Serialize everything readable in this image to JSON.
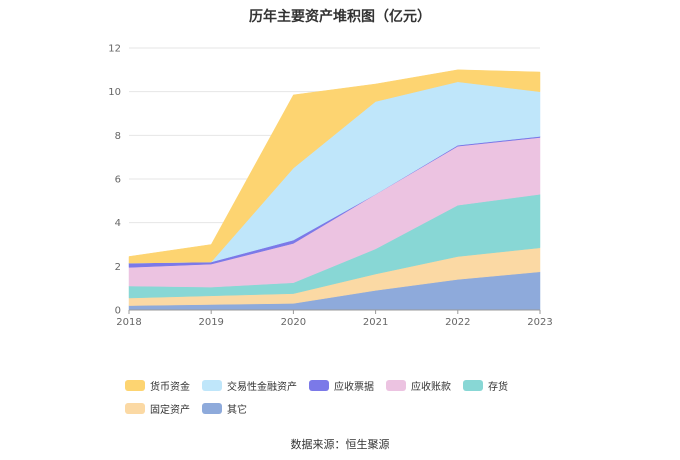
{
  "chart_data": {
    "type": "area",
    "stacked": true,
    "title": "历年主要资产堆积图（亿元）",
    "xlabel": "",
    "ylabel": "",
    "x": [
      "2018",
      "2019",
      "2020",
      "2021",
      "2022",
      "2023"
    ],
    "ylim": [
      0,
      12
    ],
    "yticks": [
      0,
      2,
      4,
      6,
      8,
      10,
      12
    ],
    "grid": true,
    "legend_position": "bottom",
    "series": [
      {
        "name": "其它",
        "color": "#8eaadb",
        "values": [
          0.2,
          0.25,
          0.3,
          0.9,
          1.4,
          1.75
        ]
      },
      {
        "name": "固定资产",
        "color": "#fbd9a4",
        "values": [
          0.35,
          0.4,
          0.45,
          0.75,
          1.05,
          1.1
        ]
      },
      {
        "name": "存货",
        "color": "#88d7d5",
        "values": [
          0.55,
          0.4,
          0.5,
          1.15,
          2.35,
          2.45
        ]
      },
      {
        "name": "应收账款",
        "color": "#ecc3e1",
        "values": [
          0.85,
          1.05,
          1.8,
          2.5,
          2.7,
          2.6
        ]
      },
      {
        "name": "应收票据",
        "color": "#7b79e8",
        "values": [
          0.2,
          0.1,
          0.15,
          0.0,
          0.05,
          0.05
        ]
      },
      {
        "name": "交易性金融资产",
        "color": "#bfe6fa",
        "values": [
          0.0,
          0.0,
          3.3,
          4.25,
          2.9,
          2.05
        ]
      },
      {
        "name": "货币资金",
        "color": "#fdd471",
        "values": [
          0.3,
          0.8,
          3.35,
          0.8,
          0.55,
          0.9
        ]
      }
    ],
    "legend_order": [
      "货币资金",
      "交易性金融资产",
      "应收票据",
      "应收账款",
      "存货",
      "固定资产",
      "其它"
    ]
  },
  "source": "数据来源：恒生聚源"
}
